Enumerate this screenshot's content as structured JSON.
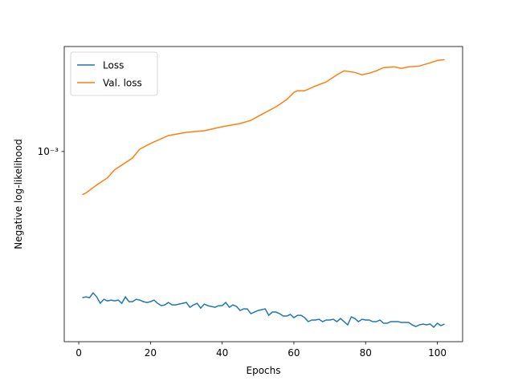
{
  "chart_data": {
    "type": "line",
    "xlabel": "Epochs",
    "ylabel": "Negative log-likelihood",
    "log_y": true,
    "legend": "upper left",
    "xlim": [
      -4.05,
      107.05
    ],
    "ylim": [
      0.00015,
      0.00285
    ],
    "xticks": [
      0,
      20,
      40,
      60,
      80,
      100
    ],
    "yticks": [
      {
        "value": 0.001,
        "label": "10⁻³"
      }
    ],
    "series": [
      {
        "name": "Loss",
        "color": "#1f77b4",
        "x": [
          1,
          2,
          3,
          4,
          5,
          6,
          7,
          8,
          9,
          10,
          11,
          12,
          13,
          14,
          15,
          16,
          17,
          18,
          19,
          20,
          21,
          22,
          23,
          24,
          25,
          26,
          27,
          28,
          29,
          30,
          31,
          32,
          33,
          34,
          35,
          36,
          37,
          38,
          39,
          40,
          41,
          42,
          43,
          44,
          45,
          46,
          47,
          48,
          49,
          50,
          51,
          52,
          53,
          54,
          55,
          56,
          57,
          58,
          59,
          60,
          61,
          62,
          63,
          64,
          65,
          66,
          67,
          68,
          69,
          70,
          71,
          72,
          73,
          74,
          75,
          76,
          77,
          78,
          79,
          80,
          81,
          82,
          83,
          84,
          85,
          86,
          87,
          88,
          89,
          90,
          91,
          92,
          93,
          94,
          95,
          96,
          97,
          98,
          99,
          100,
          101,
          102
        ],
        "values": [
          0.0002327,
          0.0002345,
          0.0002327,
          0.0002441,
          0.0002345,
          0.00022,
          0.000229,
          0.0002253,
          0.0002272,
          0.0002253,
          0.0002272,
          0.00022,
          0.0002345,
          0.0002236,
          0.0002236,
          0.000229,
          0.0002272,
          0.0002236,
          0.0002218,
          0.0002236,
          0.0002272,
          0.00022,
          0.0002148,
          0.0002165,
          0.0002218,
          0.0002165,
          0.0002165,
          0.0002183,
          0.00022,
          0.0002218,
          0.0002114,
          0.0002165,
          0.00022,
          0.0002097,
          0.0002183,
          0.0002148,
          0.0002131,
          0.0002114,
          0.0002148,
          0.0002148,
          0.0002218,
          0.0002114,
          0.0002165,
          0.0002131,
          0.0002048,
          0.0002081,
          0.0002081,
          0.0001984,
          0.0002016,
          0.0002048,
          0.0002064,
          0.0002081,
          0.0001952,
          0.0002016,
          0.0002016,
          0.0001984,
          0.0001937,
          0.0001937,
          0.0001968,
          0.0001906,
          0.0001952,
          0.0001952,
          0.0001906,
          0.0001832,
          0.0001862,
          0.0001862,
          0.0001876,
          0.0001832,
          0.0001862,
          0.0001862,
          0.0001876,
          0.0001832,
          0.0001891,
          0.0001832,
          0.0001774,
          0.0001921,
          0.0001891,
          0.0001832,
          0.0001876,
          0.0001862,
          0.0001862,
          0.0001832,
          0.0001832,
          0.0001862,
          0.0001803,
          0.0001803,
          0.0001832,
          0.0001832,
          0.0001832,
          0.0001817,
          0.0001817,
          0.0001817,
          0.0001774,
          0.0001746,
          0.0001774,
          0.0001789,
          0.0001774,
          0.0001789,
          0.0001733,
          0.0001803,
          0.000176,
          0.0001789
        ]
      },
      {
        "name": "Val. loss",
        "color": "#ff7f0e",
        "x": [
          1,
          2,
          5,
          8,
          10,
          15,
          17,
          20,
          25,
          30,
          35,
          40,
          45,
          48,
          50,
          55,
          58,
          60,
          61,
          63,
          66,
          69,
          72,
          74,
          77,
          79,
          81,
          83,
          85,
          88,
          90,
          92,
          95,
          98,
          100,
          102
        ],
        "values": [
          0.00065,
          0.000661,
          0.000716,
          0.000769,
          0.000833,
          0.000938,
          0.001024,
          0.001083,
          0.001173,
          0.001211,
          0.00123,
          0.00128,
          0.001322,
          0.001364,
          0.00142,
          0.001562,
          0.001679,
          0.001804,
          0.001833,
          0.001833,
          0.001922,
          0.002,
          0.002149,
          0.002236,
          0.002201,
          0.002149,
          0.002183,
          0.002236,
          0.002308,
          0.002327,
          0.002291,
          0.002327,
          0.002346,
          0.002422,
          0.00248,
          0.0025
        ]
      }
    ]
  }
}
